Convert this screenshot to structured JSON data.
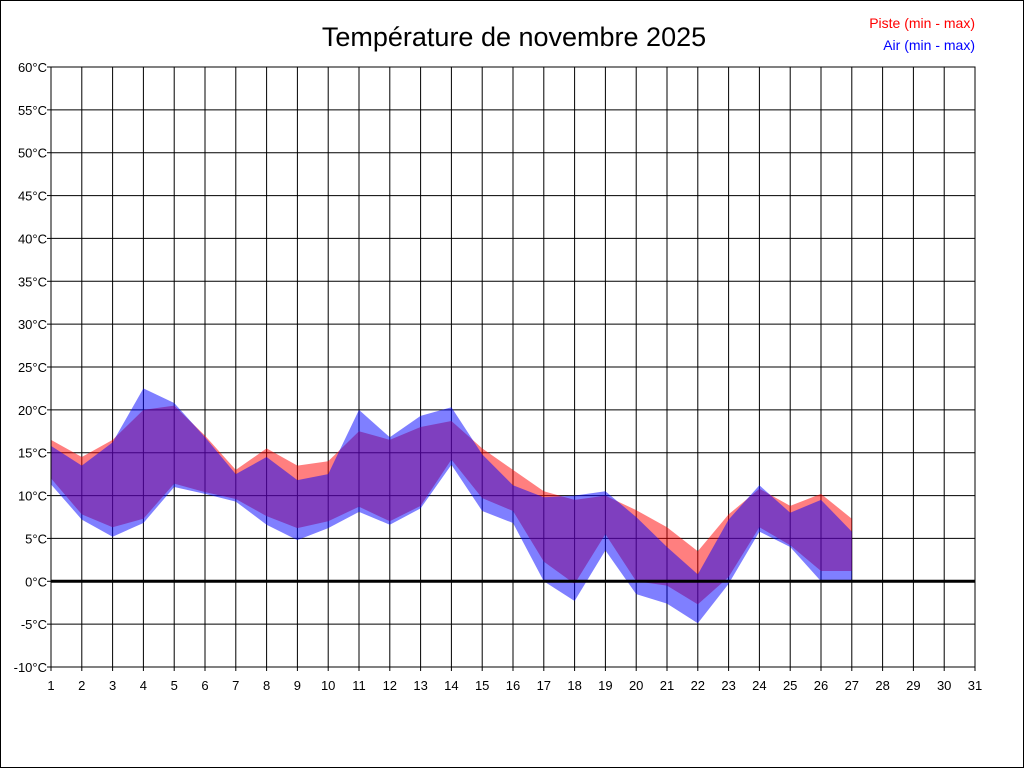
{
  "chart_data": {
    "type": "area",
    "title": "Température de novembre 2025",
    "xlabel": "",
    "ylabel": "",
    "ylim": [
      -10,
      60
    ],
    "xlim": [
      1,
      31
    ],
    "y_tick_step": 5,
    "y_unit": "°C",
    "x_ticks": [
      1,
      2,
      3,
      4,
      5,
      6,
      7,
      8,
      9,
      10,
      11,
      12,
      13,
      14,
      15,
      16,
      17,
      18,
      19,
      20,
      21,
      22,
      23,
      24,
      25,
      26,
      27,
      28,
      29,
      30,
      31
    ],
    "y_ticks": [
      "-10°C",
      "-5°C",
      "0°C",
      "5°C",
      "10°C",
      "15°C",
      "20°C",
      "25°C",
      "30°C",
      "35°C",
      "40°C",
      "45°C",
      "50°C",
      "55°C",
      "60°C"
    ],
    "grid": true,
    "zero_line": true,
    "legend_position": "top-right",
    "x": [
      1,
      2,
      3,
      4,
      5,
      6,
      7,
      8,
      9,
      10,
      11,
      12,
      13,
      14,
      15,
      16,
      17,
      18,
      19,
      20,
      21,
      22,
      23,
      24,
      25,
      26,
      27
    ],
    "series": [
      {
        "name": "Piste (min - max)",
        "color": "#ff0000",
        "min": [
          12.0,
          7.8,
          6.3,
          7.3,
          11.4,
          10.4,
          9.6,
          7.6,
          6.2,
          7.0,
          8.7,
          7.0,
          8.8,
          14.2,
          9.7,
          8.2,
          2.3,
          -0.3,
          5.5,
          0.0,
          -0.5,
          -2.7,
          0.5,
          6.3,
          4.2,
          1.2,
          1.2
        ],
        "max": [
          16.5,
          14.5,
          16.5,
          20.0,
          20.5,
          17.0,
          13.0,
          15.5,
          13.5,
          14.0,
          17.5,
          16.5,
          18.0,
          18.7,
          15.5,
          13.0,
          10.5,
          9.5,
          10.0,
          8.3,
          6.3,
          3.5,
          7.8,
          10.8,
          8.8,
          10.2,
          7.3
        ]
      },
      {
        "name": "Air (min - max)",
        "color": "#0000ff",
        "min": [
          11.3,
          7.2,
          5.2,
          6.8,
          11.0,
          10.2,
          9.3,
          6.6,
          4.8,
          6.2,
          8.1,
          6.6,
          8.5,
          13.6,
          8.2,
          6.8,
          0.0,
          -2.3,
          3.6,
          -1.5,
          -2.6,
          -4.9,
          -0.3,
          5.8,
          4.0,
          0.0,
          0.0
        ],
        "max": [
          15.8,
          13.5,
          16.2,
          22.5,
          20.8,
          16.8,
          12.5,
          14.5,
          11.8,
          12.5,
          20.0,
          16.8,
          19.3,
          20.3,
          14.8,
          11.2,
          9.8,
          10.0,
          10.5,
          7.5,
          4.0,
          0.8,
          7.2,
          11.2,
          8.0,
          9.5,
          5.8
        ]
      }
    ]
  }
}
